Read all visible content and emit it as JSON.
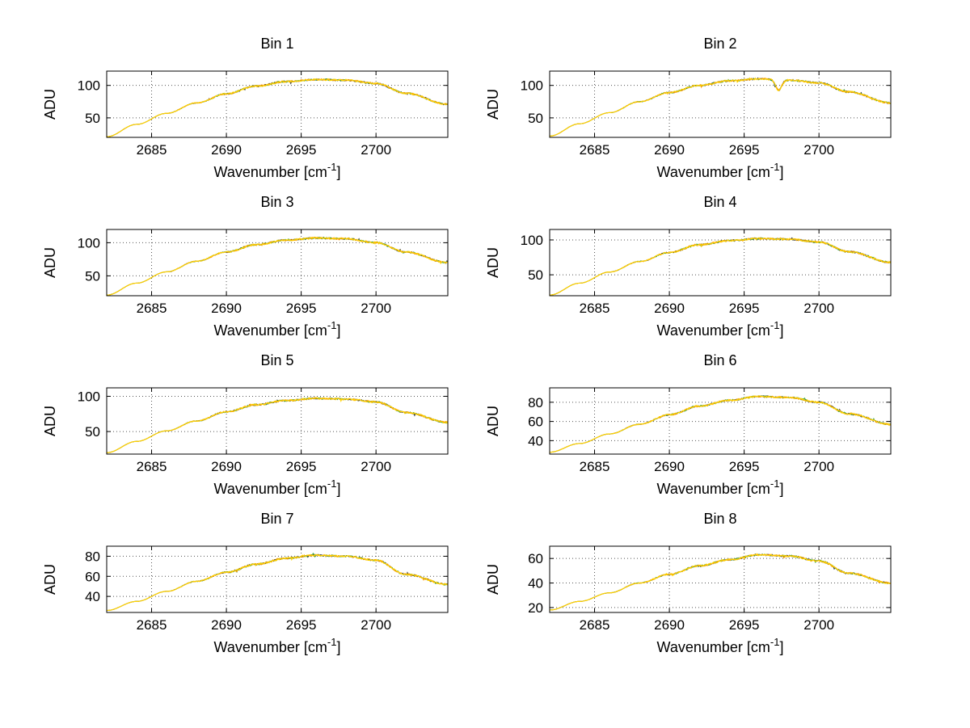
{
  "figure": {
    "background": "#ffffff",
    "axis_color": "#000000",
    "grid_style": "dotted",
    "layout": {
      "rows": 4,
      "cols": 2
    }
  },
  "chart_data": [
    {
      "type": "line",
      "title": "Bin 1",
      "xlabel": "Wavenumber [cm⁻¹]",
      "xlabel_pre": "Wavenumber [cm",
      "xlabel_sup": "-1",
      "xlabel_post": "]",
      "ylabel": "ADU",
      "xlim": [
        2682,
        2704.8
      ],
      "ylim": [
        20,
        122
      ],
      "xticks": [
        2685,
        2690,
        2695,
        2700
      ],
      "yticks": [
        50,
        100
      ],
      "grid": true,
      "x_control": [
        2682,
        2684,
        2686,
        2688,
        2690,
        2692,
        2694,
        2696,
        2698,
        2700,
        2702,
        2704.8
      ],
      "y_control": [
        21,
        40,
        57,
        73,
        87,
        99,
        106,
        109,
        108,
        103,
        88,
        71
      ],
      "series": [
        {
          "name": "trace-dark",
          "color": "#3f3f3f"
        },
        {
          "name": "trace-green",
          "color": "#2fa03a"
        },
        {
          "name": "trace-orange",
          "color": "#ff9800"
        },
        {
          "name": "trace-yellow",
          "color": "#ffd300"
        }
      ]
    },
    {
      "type": "line",
      "title": "Bin 2",
      "xlabel": "Wavenumber [cm⁻¹]",
      "xlabel_pre": "Wavenumber [cm",
      "xlabel_sup": "-1",
      "xlabel_post": "]",
      "ylabel": "ADU",
      "xlim": [
        2682,
        2704.8
      ],
      "ylim": [
        20,
        122
      ],
      "xticks": [
        2685,
        2690,
        2695,
        2700
      ],
      "yticks": [
        50,
        100
      ],
      "grid": true,
      "dip": {
        "x": 2697.3,
        "depth": 16,
        "width": 0.28
      },
      "x_control": [
        2682,
        2684,
        2686,
        2688,
        2690,
        2692,
        2694,
        2696,
        2698,
        2700,
        2702,
        2704.8
      ],
      "y_control": [
        22,
        41,
        58,
        75,
        89,
        100,
        107,
        110,
        108,
        104,
        90,
        73
      ],
      "series": [
        {
          "name": "trace-dark",
          "color": "#3f3f3f"
        },
        {
          "name": "trace-green",
          "color": "#2fa03a"
        },
        {
          "name": "trace-orange",
          "color": "#ff9800"
        },
        {
          "name": "trace-yellow",
          "color": "#ffd300"
        }
      ]
    },
    {
      "type": "line",
      "title": "Bin 3",
      "xlabel": "Wavenumber [cm⁻¹]",
      "xlabel_pre": "Wavenumber [cm",
      "xlabel_sup": "-1",
      "xlabel_post": "]",
      "ylabel": "ADU",
      "xlim": [
        2682,
        2704.8
      ],
      "ylim": [
        20,
        120
      ],
      "xticks": [
        2685,
        2690,
        2695,
        2700
      ],
      "yticks": [
        50,
        100
      ],
      "grid": true,
      "x_control": [
        2682,
        2684,
        2686,
        2688,
        2690,
        2692,
        2694,
        2696,
        2698,
        2700,
        2702,
        2704.8
      ],
      "y_control": [
        21,
        39,
        56,
        72,
        86,
        97,
        104,
        107,
        106,
        100,
        86,
        70
      ],
      "series": [
        {
          "name": "trace-dark",
          "color": "#3f3f3f"
        },
        {
          "name": "trace-green",
          "color": "#2fa03a"
        },
        {
          "name": "trace-orange",
          "color": "#ff9800"
        },
        {
          "name": "trace-yellow",
          "color": "#ffd300"
        }
      ]
    },
    {
      "type": "line",
      "title": "Bin 4",
      "xlabel": "Wavenumber [cm⁻¹]",
      "xlabel_pre": "Wavenumber [cm",
      "xlabel_sup": "-1",
      "xlabel_post": "]",
      "ylabel": "ADU",
      "xlim": [
        2682,
        2704.8
      ],
      "ylim": [
        20,
        115
      ],
      "xticks": [
        2685,
        2690,
        2695,
        2700
      ],
      "yticks": [
        50,
        100
      ],
      "grid": true,
      "x_control": [
        2682,
        2684,
        2686,
        2688,
        2690,
        2692,
        2694,
        2696,
        2698,
        2700,
        2702,
        2704.8
      ],
      "y_control": [
        21,
        38,
        54,
        69,
        82,
        93,
        99,
        102,
        101,
        97,
        83,
        68
      ],
      "series": [
        {
          "name": "trace-dark",
          "color": "#3f3f3f"
        },
        {
          "name": "trace-green",
          "color": "#2fa03a"
        },
        {
          "name": "trace-orange",
          "color": "#ff9800"
        },
        {
          "name": "trace-yellow",
          "color": "#ffd300"
        }
      ]
    },
    {
      "type": "line",
      "title": "Bin 5",
      "xlabel": "Wavenumber [cm⁻¹]",
      "xlabel_pre": "Wavenumber [cm",
      "xlabel_sup": "-1",
      "xlabel_post": "]",
      "ylabel": "ADU",
      "xlim": [
        2682,
        2704.8
      ],
      "ylim": [
        18,
        112
      ],
      "xticks": [
        2685,
        2690,
        2695,
        2700
      ],
      "yticks": [
        50,
        100
      ],
      "grid": true,
      "x_control": [
        2682,
        2684,
        2686,
        2688,
        2690,
        2692,
        2694,
        2696,
        2698,
        2700,
        2702,
        2704.8
      ],
      "y_control": [
        20,
        36,
        51,
        65,
        78,
        88,
        94,
        97,
        96,
        92,
        77,
        63
      ],
      "series": [
        {
          "name": "trace-dark",
          "color": "#3f3f3f"
        },
        {
          "name": "trace-green",
          "color": "#2fa03a"
        },
        {
          "name": "trace-orange",
          "color": "#ff9800"
        },
        {
          "name": "trace-yellow",
          "color": "#ffd300"
        }
      ]
    },
    {
      "type": "line",
      "title": "Bin 6",
      "xlabel": "Wavenumber [cm⁻¹]",
      "xlabel_pre": "Wavenumber [cm",
      "xlabel_sup": "-1",
      "xlabel_post": "]",
      "ylabel": "ADU",
      "xlim": [
        2682,
        2704.8
      ],
      "ylim": [
        26,
        95
      ],
      "xticks": [
        2685,
        2690,
        2695,
        2700
      ],
      "yticks": [
        40,
        60,
        80
      ],
      "grid": true,
      "x_control": [
        2682,
        2684,
        2686,
        2688,
        2690,
        2692,
        2694,
        2696,
        2698,
        2700,
        2702,
        2704.8
      ],
      "y_control": [
        28,
        37,
        47,
        57,
        67,
        76,
        82,
        86,
        85,
        80,
        68,
        57
      ],
      "series": [
        {
          "name": "trace-dark",
          "color": "#3f3f3f"
        },
        {
          "name": "trace-green",
          "color": "#2fa03a"
        },
        {
          "name": "trace-orange",
          "color": "#ff9800"
        },
        {
          "name": "trace-yellow",
          "color": "#ffd300"
        }
      ]
    },
    {
      "type": "line",
      "title": "Bin 7",
      "xlabel": "Wavenumber [cm⁻¹]",
      "xlabel_pre": "Wavenumber [cm",
      "xlabel_sup": "-1",
      "xlabel_post": "]",
      "ylabel": "ADU",
      "xlim": [
        2682,
        2704.8
      ],
      "ylim": [
        24,
        90
      ],
      "xticks": [
        2685,
        2690,
        2695,
        2700
      ],
      "yticks": [
        40,
        60,
        80
      ],
      "grid": true,
      "x_control": [
        2682,
        2684,
        2686,
        2688,
        2690,
        2692,
        2694,
        2696,
        2698,
        2700,
        2702,
        2704.8
      ],
      "y_control": [
        26,
        35,
        45,
        55,
        64,
        72,
        78,
        81,
        80,
        76,
        62,
        52
      ],
      "series": [
        {
          "name": "trace-dark",
          "color": "#3f3f3f"
        },
        {
          "name": "trace-green",
          "color": "#2fa03a"
        },
        {
          "name": "trace-orange",
          "color": "#ff9800"
        },
        {
          "name": "trace-yellow",
          "color": "#ffd300"
        }
      ]
    },
    {
      "type": "line",
      "title": "Bin 8",
      "xlabel": "Wavenumber [cm⁻¹]",
      "xlabel_pre": "Wavenumber [cm",
      "xlabel_sup": "-1",
      "xlabel_post": "]",
      "ylabel": "ADU",
      "xlim": [
        2682,
        2704.8
      ],
      "ylim": [
        16,
        70
      ],
      "xticks": [
        2685,
        2690,
        2695,
        2700
      ],
      "yticks": [
        20,
        40,
        60
      ],
      "grid": true,
      "x_control": [
        2682,
        2684,
        2686,
        2688,
        2690,
        2692,
        2694,
        2696,
        2698,
        2700,
        2702,
        2704.8
      ],
      "y_control": [
        18,
        25,
        32,
        40,
        47,
        54,
        59,
        63,
        62,
        58,
        48,
        40
      ],
      "series": [
        {
          "name": "trace-dark",
          "color": "#3f3f3f"
        },
        {
          "name": "trace-green",
          "color": "#2fa03a"
        },
        {
          "name": "trace-orange",
          "color": "#ff9800"
        },
        {
          "name": "trace-yellow",
          "color": "#ffd300"
        }
      ]
    }
  ]
}
